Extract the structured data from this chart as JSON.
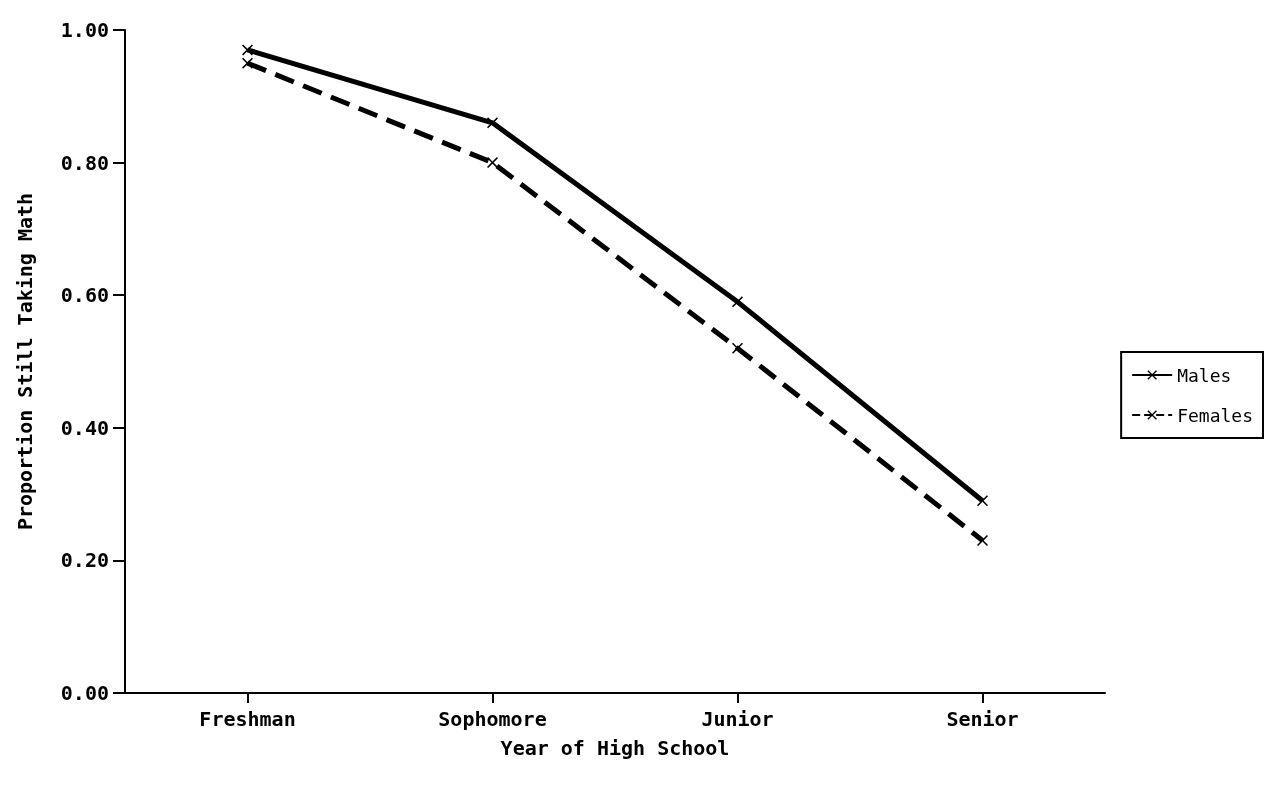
{
  "chart_data": {
    "type": "line",
    "xlabel": "Year of High School",
    "ylabel": "Proportion Still Taking Math",
    "categories": [
      "Freshman",
      "Sophomore",
      "Junior",
      "Senior"
    ],
    "series": [
      {
        "name": "Males",
        "color": "#000000",
        "values": [
          0.97,
          0.86,
          0.59,
          0.29
        ],
        "line_style": "solid"
      },
      {
        "name": "Females",
        "color": "#000000",
        "values": [
          0.95,
          0.8,
          0.52,
          0.23
        ],
        "line_style": "dashed"
      }
    ],
    "ylim": [
      0,
      1
    ],
    "yticks": [
      {
        "value": 0,
        "label": "0.00"
      },
      {
        "value": 0.2,
        "label": "0.20"
      },
      {
        "value": 0.4,
        "label": "0.40"
      },
      {
        "value": 0.6,
        "label": "0.60"
      },
      {
        "value": 0.8,
        "label": "0.80"
      },
      {
        "value": 1,
        "label": "1.00"
      }
    ],
    "grid": false,
    "legend": "right",
    "marker": "cross"
  }
}
